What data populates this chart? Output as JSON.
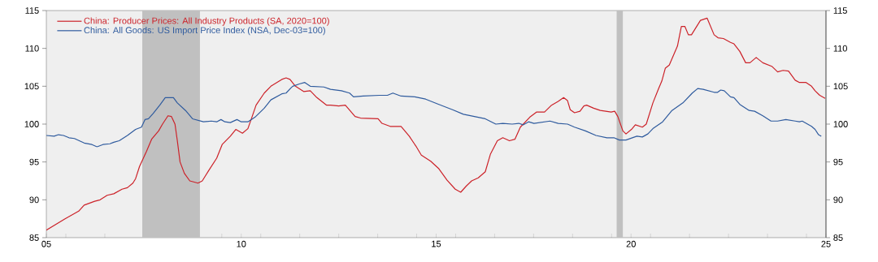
{
  "chart_data": {
    "type": "line",
    "xlim": [
      2005,
      2025
    ],
    "xticks": [
      {
        "value": 2005,
        "label": "05"
      },
      {
        "value": 2010,
        "label": "10"
      },
      {
        "value": 2015,
        "label": "15"
      },
      {
        "value": 2020,
        "label": "20"
      },
      {
        "value": 2025,
        "label": "25"
      },
      {
        "value": 2005.5,
        "label": null
      },
      {
        "value": 2006.5,
        "label": null
      },
      {
        "value": 2007.5,
        "label": null
      },
      {
        "value": 2008.5,
        "label": null
      },
      {
        "value": 2009.5,
        "label": null
      },
      {
        "value": 2010.5,
        "label": null
      },
      {
        "value": 2011.5,
        "label": null
      },
      {
        "value": 2012.5,
        "label": null
      },
      {
        "value": 2013.5,
        "label": null
      },
      {
        "value": 2014.5,
        "label": null
      },
      {
        "value": 2015.5,
        "label": null
      },
      {
        "value": 2016.5,
        "label": null
      },
      {
        "value": 2017.5,
        "label": null
      },
      {
        "value": 2018.5,
        "label": null
      },
      {
        "value": 2019.5,
        "label": null
      },
      {
        "value": 2020.5,
        "label": null
      },
      {
        "value": 2021.5,
        "label": null
      },
      {
        "value": 2022.5,
        "label": null
      },
      {
        "value": 2023.5,
        "label": null
      },
      {
        "value": 2024.5,
        "label": null
      }
    ],
    "ylim": [
      85,
      115
    ],
    "yticks": [
      85,
      90,
      95,
      100,
      105,
      110,
      115
    ],
    "y2lim": [
      85,
      115
    ],
    "y2ticks": [
      85,
      90,
      95,
      100,
      105,
      110,
      115
    ],
    "legend": "top left",
    "bands": [
      {
        "axis": "x",
        "from": 2007.46,
        "to": 2008.94,
        "color": "#c0c0c0"
      },
      {
        "axis": "x",
        "from": 2019.63,
        "to": 2019.79,
        "color": "#c0c0c0"
      }
    ],
    "series": [
      {
        "name": "China: Producer Prices: All Industry Products (SA, 2020=100)",
        "color": "#cc2229",
        "x": [
          2005.0,
          2005.48,
          2005.83,
          2005.97,
          2006.24,
          2006.38,
          2006.56,
          2006.73,
          2006.94,
          2007.08,
          2007.22,
          2007.29,
          2007.39,
          2007.57,
          2007.7,
          2007.88,
          2007.98,
          2008.12,
          2008.21,
          2008.3,
          2008.36,
          2008.43,
          2008.54,
          2008.68,
          2008.89,
          2009.0,
          2009.17,
          2009.37,
          2009.51,
          2009.72,
          2009.86,
          2010.03,
          2010.17,
          2010.28,
          2010.38,
          2010.59,
          2010.76,
          2011.04,
          2011.15,
          2011.25,
          2011.39,
          2011.6,
          2011.77,
          2011.94,
          2012.19,
          2012.29,
          2012.5,
          2012.67,
          2012.92,
          2013.06,
          2013.51,
          2013.61,
          2013.82,
          2014.1,
          2014.31,
          2014.48,
          2014.62,
          2014.86,
          2015.07,
          2015.28,
          2015.49,
          2015.63,
          2015.77,
          2015.91,
          2016.08,
          2016.26,
          2016.39,
          2016.57,
          2016.71,
          2016.88,
          2017.02,
          2017.16,
          2017.4,
          2017.58,
          2017.78,
          2017.96,
          2018.13,
          2018.27,
          2018.37,
          2018.44,
          2018.55,
          2018.69,
          2018.79,
          2018.86,
          2019.04,
          2019.21,
          2019.49,
          2019.58,
          2019.66,
          2019.79,
          2019.87,
          2020.01,
          2020.11,
          2020.29,
          2020.39,
          2020.56,
          2020.7,
          2020.79,
          2020.88,
          2020.98,
          2021.19,
          2021.29,
          2021.38,
          2021.47,
          2021.55,
          2021.78,
          2021.95,
          2022.13,
          2022.23,
          2022.37,
          2022.55,
          2022.64,
          2022.79,
          2022.94,
          2023.05,
          2023.21,
          2023.38,
          2023.62,
          2023.76,
          2023.9,
          2024.04,
          2024.21,
          2024.32,
          2024.49,
          2024.63,
          2024.72,
          2024.84,
          2024.98
        ],
        "values": [
          86.0,
          87.5,
          88.5,
          89.3,
          89.8,
          90.0,
          90.6,
          90.8,
          91.4,
          91.6,
          92.2,
          92.8,
          94.4,
          96.4,
          98.0,
          99.1,
          100.0,
          101.1,
          101.0,
          100.0,
          97.8,
          95.0,
          93.5,
          92.5,
          92.2,
          92.5,
          93.9,
          95.5,
          97.3,
          98.4,
          99.3,
          98.8,
          99.4,
          101.0,
          102.5,
          104.1,
          105.0,
          105.9,
          106.1,
          105.9,
          105.0,
          104.3,
          104.4,
          103.5,
          102.5,
          102.5,
          102.4,
          102.5,
          101.0,
          100.8,
          100.7,
          100.1,
          99.7,
          99.7,
          98.4,
          97.1,
          95.9,
          95.1,
          94.1,
          92.6,
          91.4,
          91.0,
          91.8,
          92.5,
          92.9,
          93.7,
          96.0,
          97.8,
          98.2,
          97.8,
          98.0,
          99.6,
          100.9,
          101.6,
          101.6,
          102.5,
          103.0,
          103.5,
          103.1,
          101.9,
          101.5,
          101.7,
          102.4,
          102.5,
          102.1,
          101.8,
          101.6,
          101.7,
          101.0,
          99.1,
          98.7,
          99.3,
          99.9,
          99.6,
          100.0,
          102.8,
          104.6,
          105.7,
          107.4,
          107.8,
          110.3,
          112.9,
          112.9,
          111.8,
          111.8,
          113.7,
          114.0,
          111.8,
          111.4,
          111.3,
          110.8,
          110.6,
          109.6,
          108.1,
          108.1,
          108.8,
          108.1,
          107.6,
          106.9,
          107.1,
          107.0,
          105.8,
          105.5,
          105.5,
          105.0,
          104.4,
          103.8,
          103.4
        ]
      },
      {
        "name": "China: All Goods: US Import Price Index (NSA, Dec-03=100)",
        "color": "#2f5b9e",
        "x": [
          2005.0,
          2005.2,
          2005.31,
          2005.44,
          2005.58,
          2005.72,
          2005.97,
          2006.17,
          2006.3,
          2006.45,
          2006.63,
          2006.73,
          2006.87,
          2007.08,
          2007.29,
          2007.44,
          2007.53,
          2007.62,
          2007.74,
          2007.91,
          2008.05,
          2008.26,
          2008.36,
          2008.57,
          2008.75,
          2009.03,
          2009.23,
          2009.37,
          2009.48,
          2009.58,
          2009.72,
          2009.89,
          2010.0,
          2010.17,
          2010.35,
          2010.59,
          2010.76,
          2011.04,
          2011.15,
          2011.28,
          2011.32,
          2011.49,
          2011.63,
          2011.77,
          2012.12,
          2012.29,
          2012.57,
          2012.78,
          2012.88,
          2013.13,
          2013.54,
          2013.75,
          2013.89,
          2014.1,
          2014.45,
          2014.73,
          2015.07,
          2015.42,
          2015.7,
          2015.98,
          2016.26,
          2016.53,
          2016.71,
          2016.95,
          2017.12,
          2017.23,
          2017.37,
          2017.51,
          2017.92,
          2018.13,
          2018.37,
          2018.55,
          2018.83,
          2019.1,
          2019.38,
          2019.56,
          2019.7,
          2019.87,
          2020.15,
          2020.29,
          2020.43,
          2020.56,
          2020.81,
          2021.05,
          2021.33,
          2021.57,
          2021.71,
          2021.85,
          2022.13,
          2022.22,
          2022.3,
          2022.39,
          2022.55,
          2022.64,
          2022.79,
          2023.03,
          2023.17,
          2023.38,
          2023.59,
          2023.76,
          2023.97,
          2024.21,
          2024.32,
          2024.39,
          2024.63,
          2024.72,
          2024.81,
          2024.88
        ],
        "values": [
          98.5,
          98.4,
          98.6,
          98.5,
          98.2,
          98.1,
          97.5,
          97.3,
          97.0,
          97.3,
          97.4,
          97.6,
          97.8,
          98.5,
          99.3,
          99.6,
          100.6,
          100.7,
          101.4,
          102.5,
          103.5,
          103.5,
          102.8,
          101.8,
          100.7,
          100.3,
          100.4,
          100.3,
          100.6,
          100.3,
          100.2,
          100.6,
          100.3,
          100.3,
          100.9,
          102.1,
          103.2,
          104.0,
          104.1,
          104.8,
          105.0,
          105.3,
          105.5,
          105.0,
          104.9,
          104.6,
          104.4,
          104.1,
          103.6,
          103.7,
          103.8,
          103.8,
          104.1,
          103.7,
          103.6,
          103.3,
          102.6,
          101.9,
          101.3,
          101.0,
          100.7,
          100.0,
          100.1,
          100.0,
          100.1,
          99.9,
          100.3,
          100.1,
          100.4,
          100.1,
          100.0,
          99.6,
          99.1,
          98.5,
          98.2,
          98.2,
          97.9,
          97.9,
          98.4,
          98.3,
          98.7,
          99.4,
          100.3,
          101.8,
          102.8,
          104.1,
          104.7,
          104.6,
          104.2,
          104.2,
          104.5,
          104.4,
          103.6,
          103.5,
          102.6,
          101.8,
          101.7,
          101.1,
          100.4,
          100.4,
          100.6,
          100.4,
          100.3,
          100.4,
          99.7,
          99.3,
          98.6,
          98.4
        ]
      }
    ]
  }
}
